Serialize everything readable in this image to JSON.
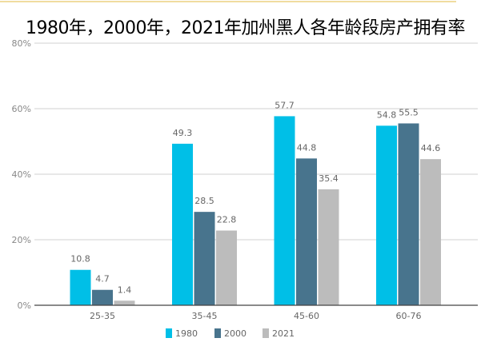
{
  "chart_data": {
    "type": "bar",
    "title": "1980年，2000年，2021年加州黑人各年龄段房产拥有率",
    "categories": [
      "25-35",
      "35-45",
      "45-60",
      "60-76"
    ],
    "series": [
      {
        "name": "1980",
        "values": [
          10.8,
          49.3,
          57.7,
          54.8
        ],
        "color": "#00bfe7"
      },
      {
        "name": "2000",
        "values": [
          4.7,
          28.5,
          44.8,
          55.5
        ],
        "color": "#48748d"
      },
      {
        "name": "2021",
        "values": [
          1.4,
          22.8,
          35.4,
          44.6
        ],
        "color": "#bcbcbc"
      }
    ],
    "ylim": [
      0,
      80
    ],
    "yticks": [
      "0%",
      "20%",
      "40%",
      "60%",
      "80%"
    ],
    "grid": true,
    "legend": "bottom"
  }
}
